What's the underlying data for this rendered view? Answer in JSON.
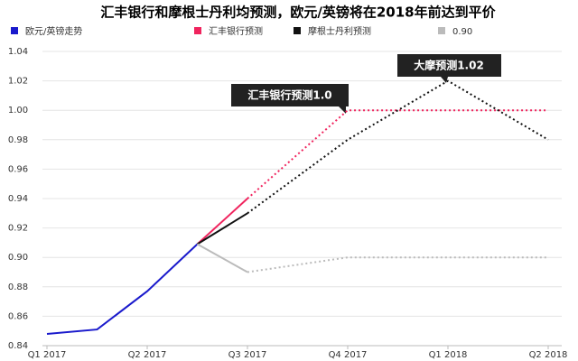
{
  "chart_data": {
    "type": "line",
    "title": "汇丰银行和摩根士丹利均预测，欧元/英镑将在2018年前达到平价",
    "annotations": [
      "汇丰银行预测1.0",
      "大摩预测1.02"
    ],
    "xlim": [
      0,
      5
    ],
    "xticks": [
      {
        "value": 0,
        "label": "Q1 2017"
      },
      {
        "value": 1,
        "label": "Q2 2017"
      },
      {
        "value": 2,
        "label": "Q3 2017"
      },
      {
        "value": 3,
        "label": "Q4 2017"
      },
      {
        "value": 4,
        "label": "Q1 2018"
      },
      {
        "value": 5,
        "label": "Q2 2018"
      }
    ],
    "ylim": [
      0.84,
      1.04
    ],
    "yticks": [
      0.84,
      0.86,
      0.88,
      {
        "value": 0.9,
        "label": "0.90"
      },
      0.92,
      0.94,
      0.96,
      0.98,
      {
        "value": 1,
        "label": "1.00"
      },
      1.02,
      1.04
    ],
    "grid": true,
    "series": [
      {
        "name": "欧元/英镑走势",
        "color": "#1a1acc",
        "x": [
          0,
          0.5,
          1,
          1.5
        ],
        "values": [
          0.848,
          0.851,
          0.877,
          0.909
        ]
      },
      {
        "name": "汇丰银行预测",
        "color": "#f0245e",
        "x": [
          1.5,
          2,
          3,
          5
        ],
        "values": [
          0.909,
          0.94,
          1.0,
          1.0
        ],
        "dotted_from_x": 2
      },
      {
        "name": "摩根士丹利预测",
        "color": "#111111",
        "x": [
          1.5,
          2,
          3,
          4,
          5
        ],
        "values": [
          0.909,
          0.93,
          0.98,
          1.02,
          0.98
        ],
        "dotted_from_x": 2
      },
      {
        "name": "0.90",
        "color": "#bbbbbb",
        "x": [
          1.5,
          2,
          3,
          4,
          5
        ],
        "values": [
          0.909,
          0.89,
          0.9,
          0.9,
          0.9
        ],
        "dotted_from_x": 2
      }
    ]
  }
}
